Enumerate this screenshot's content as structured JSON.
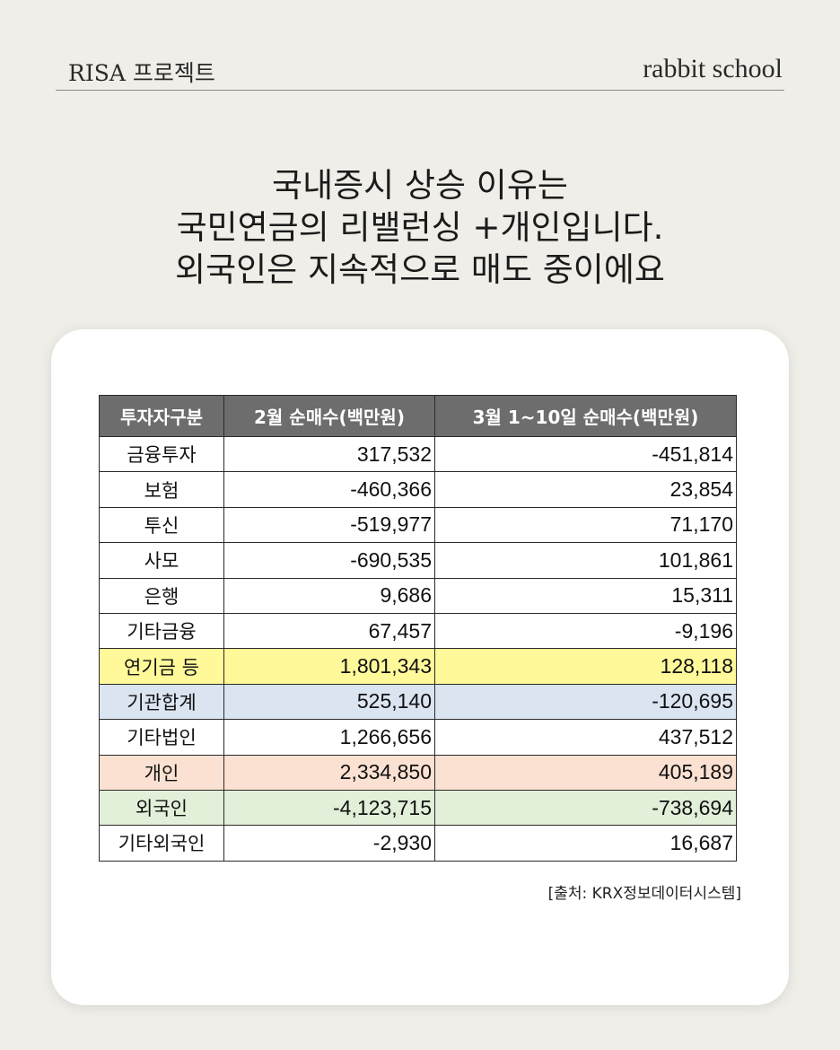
{
  "header": {
    "left": "RISA 프로젝트",
    "right": "rabbit school"
  },
  "headline": [
    "국내증시 상승 이유는",
    "국민연금의 리밸런싱 +개인입니다.",
    "외국인은 지속적으로 매도 중이에요"
  ],
  "table": {
    "headers": [
      "투자자구분",
      "2월 순매수(백만원)",
      "3월 1~10일 순매수(백만원)"
    ],
    "rows": [
      {
        "cat": "금융투자",
        "feb": "317,532",
        "mar": "-451,814"
      },
      {
        "cat": "보험",
        "feb": "-460,366",
        "mar": "23,854"
      },
      {
        "cat": "투신",
        "feb": "-519,977",
        "mar": "71,170"
      },
      {
        "cat": "사모",
        "feb": "-690,535",
        "mar": "101,861"
      },
      {
        "cat": "은행",
        "feb": "9,686",
        "mar": "15,311"
      },
      {
        "cat": "기타금융",
        "feb": "67,457",
        "mar": "-9,196"
      },
      {
        "cat": "연기금 등",
        "feb": "1,801,343",
        "mar": "128,118"
      },
      {
        "cat": "기관합계",
        "feb": "525,140",
        "mar": "-120,695"
      },
      {
        "cat": "기타법인",
        "feb": "1,266,656",
        "mar": "437,512"
      },
      {
        "cat": "개인",
        "feb": "2,334,850",
        "mar": "405,189"
      },
      {
        "cat": "외국인",
        "feb": "-4,123,715",
        "mar": "-738,694"
      },
      {
        "cat": "기타외국인",
        "feb": "-2,930",
        "mar": "16,687"
      }
    ]
  },
  "colors": {
    "header_bg": "#6d6d6d",
    "highlight_yellow": "#fff99a",
    "highlight_blue": "#dbe4f1",
    "highlight_peach": "#fbe1d2",
    "highlight_green": "#e2efd9"
  },
  "source": "[출처: KRX정보데이터시스템]"
}
